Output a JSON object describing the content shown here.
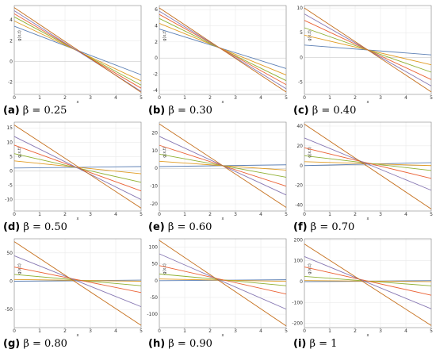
{
  "series_colors": [
    "#5e81b5",
    "#e19c24",
    "#8fb032",
    "#eb6235",
    "#8778b3",
    "#c56e1a"
  ],
  "chart_data": [
    {
      "type": "line",
      "label": "(a)",
      "beta_text": "β = 0.25",
      "xlabel": "x",
      "ylabel": "g(x,t)",
      "xlim": [
        0,
        5
      ],
      "ylim": [
        -3.2,
        5.4
      ],
      "xticks": [
        0,
        1,
        2,
        3,
        4,
        5
      ],
      "yticks": [
        -2,
        0,
        2,
        4
      ],
      "xtick_labels": [
        "0",
        "1",
        "2",
        "3",
        "4",
        "5"
      ],
      "ytick_labels": [
        "-2",
        "0",
        "2",
        "4"
      ],
      "x": [
        0,
        5
      ],
      "series": [
        {
          "values": [
            3.4,
            -1.3
          ]
        },
        {
          "values": [
            3.9,
            -1.9
          ]
        },
        {
          "values": [
            4.3,
            -2.3
          ]
        },
        {
          "values": [
            4.6,
            -2.6
          ]
        },
        {
          "values": [
            4.9,
            -2.9
          ]
        },
        {
          "values": [
            5.2,
            -3.0
          ]
        }
      ]
    },
    {
      "type": "line",
      "label": "(b)",
      "beta_text": "β = 0.30",
      "xlabel": "x",
      "ylabel": "g(x,t)",
      "xlim": [
        0,
        5
      ],
      "ylim": [
        -4.5,
        6.5
      ],
      "xticks": [
        0,
        1,
        2,
        3,
        4,
        5
      ],
      "yticks": [
        -4,
        -2,
        0,
        2,
        4,
        6
      ],
      "xtick_labels": [
        "0",
        "1",
        "2",
        "3",
        "4",
        "5"
      ],
      "ytick_labels": [
        "-4",
        "-2",
        "0",
        "2",
        "4",
        "6"
      ],
      "x": [
        0,
        5
      ],
      "series": [
        {
          "values": [
            3.6,
            -1.3
          ]
        },
        {
          "values": [
            4.3,
            -2.1
          ]
        },
        {
          "values": [
            4.9,
            -2.8
          ]
        },
        {
          "values": [
            5.4,
            -3.3
          ]
        },
        {
          "values": [
            5.8,
            -3.8
          ]
        },
        {
          "values": [
            6.2,
            -4.2
          ]
        }
      ]
    },
    {
      "type": "line",
      "label": "(c)",
      "beta_text": "β = 0.40",
      "xlabel": "x",
      "ylabel": "g(x,t)",
      "xlim": [
        0,
        5
      ],
      "ylim": [
        -7.5,
        10.5
      ],
      "xticks": [
        0,
        1,
        2,
        3,
        4,
        5
      ],
      "yticks": [
        -5,
        0,
        5,
        10
      ],
      "xtick_labels": [
        "0",
        "1",
        "2",
        "3",
        "4",
        "5"
      ],
      "ytick_labels": [
        "-5",
        "0",
        "5",
        "10"
      ],
      "x": [
        0,
        5
      ],
      "series": [
        {
          "values": [
            2.5,
            0.5
          ]
        },
        {
          "values": [
            4.5,
            -1.5
          ]
        },
        {
          "values": [
            6.0,
            -3.0
          ]
        },
        {
          "values": [
            7.5,
            -4.5
          ]
        },
        {
          "values": [
            8.8,
            -5.8
          ]
        },
        {
          "values": [
            10.0,
            -7.0
          ]
        }
      ]
    },
    {
      "type": "line",
      "label": "(d)",
      "beta_text": "β = 0.50",
      "xlabel": "x",
      "ylabel": "g(x,t)",
      "xlim": [
        0,
        5
      ],
      "ylim": [
        -14,
        17
      ],
      "xticks": [
        0,
        1,
        2,
        3,
        4,
        5
      ],
      "yticks": [
        -10,
        -5,
        0,
        5,
        10,
        15
      ],
      "xtick_labels": [
        "0",
        "1",
        "2",
        "3",
        "4",
        "5"
      ],
      "ytick_labels": [
        "-10",
        "-5",
        "0",
        "5",
        "10",
        "15"
      ],
      "x": [
        0,
        5
      ],
      "series": [
        {
          "values": [
            1.0,
            1.5
          ]
        },
        {
          "values": [
            3.5,
            -1.0
          ]
        },
        {
          "values": [
            6.0,
            -4.0
          ]
        },
        {
          "values": [
            9.0,
            -7.0
          ]
        },
        {
          "values": [
            12.0,
            -10.0
          ]
        },
        {
          "values": [
            16.0,
            -13.0
          ]
        }
      ]
    },
    {
      "type": "line",
      "label": "(e)",
      "beta_text": "β = 0.60",
      "xlabel": "x",
      "ylabel": "g(x,t)",
      "xlim": [
        0,
        5
      ],
      "ylim": [
        -24,
        26
      ],
      "xticks": [
        0,
        1,
        2,
        3,
        4,
        5
      ],
      "yticks": [
        -20,
        -10,
        0,
        10,
        20
      ],
      "xtick_labels": [
        "0",
        "1",
        "2",
        "3",
        "4",
        "5"
      ],
      "ytick_labels": [
        "-20",
        "-10",
        "0",
        "10",
        "20"
      ],
      "x": [
        0,
        5
      ],
      "series": [
        {
          "values": [
            1.0,
            2.0
          ]
        },
        {
          "values": [
            4.0,
            -1.0
          ]
        },
        {
          "values": [
            8.0,
            -5.0
          ]
        },
        {
          "values": [
            13.0,
            -10.0
          ]
        },
        {
          "values": [
            18.0,
            -15.0
          ]
        },
        {
          "values": [
            25.0,
            -22.0
          ]
        }
      ]
    },
    {
      "type": "line",
      "label": "(f)",
      "beta_text": "β = 0.70",
      "xlabel": "x",
      "ylabel": "g(x,t)",
      "xlim": [
        0,
        5
      ],
      "ylim": [
        -46,
        44
      ],
      "xticks": [
        0,
        1,
        2,
        3,
        4,
        5
      ],
      "yticks": [
        -40,
        -20,
        0,
        20,
        40
      ],
      "xtick_labels": [
        "0",
        "1",
        "2",
        "3",
        "4",
        "5"
      ],
      "ytick_labels": [
        "-40",
        "-20",
        "0",
        "20",
        "40"
      ],
      "x": [
        0,
        5
      ],
      "series": [
        {
          "values": [
            0.0,
            3.0
          ]
        },
        {
          "values": [
            4.0,
            0.0
          ]
        },
        {
          "values": [
            10.0,
            -5.0
          ]
        },
        {
          "values": [
            18.0,
            -13.0
          ]
        },
        {
          "values": [
            28.0,
            -25.0
          ]
        },
        {
          "values": [
            42.0,
            -44.0
          ]
        }
      ]
    },
    {
      "type": "line",
      "label": "(g)",
      "beta_text": "β = 0.80",
      "xlabel": "x",
      "ylabel": "g(x,t)",
      "xlim": [
        0,
        5
      ],
      "ylim": [
        -82,
        75
      ],
      "xticks": [
        0,
        1,
        2,
        3,
        4,
        5
      ],
      "yticks": [
        -50,
        0,
        50
      ],
      "xtick_labels": [
        "0",
        "1",
        "2",
        "3",
        "4",
        "5"
      ],
      "ytick_labels": [
        "-50",
        "0",
        "50"
      ],
      "x": [
        0,
        5
      ],
      "series": [
        {
          "values": [
            0.0,
            2.0
          ]
        },
        {
          "values": [
            3.0,
            0.0
          ]
        },
        {
          "values": [
            12.0,
            -8.0
          ]
        },
        {
          "values": [
            25.0,
            -20.0
          ]
        },
        {
          "values": [
            45.0,
            -45.0
          ]
        },
        {
          "values": [
            70.0,
            -78.0
          ]
        }
      ]
    },
    {
      "type": "line",
      "label": "(h)",
      "beta_text": "β = 0.90",
      "xlabel": "x",
      "ylabel": "g(x,t)",
      "xlim": [
        0,
        5
      ],
      "ylim": [
        -140,
        125
      ],
      "xticks": [
        0,
        1,
        2,
        3,
        4,
        5
      ],
      "yticks": [
        -100,
        -50,
        0,
        50,
        100
      ],
      "xtick_labels": [
        "0",
        "1",
        "2",
        "3",
        "4",
        "5"
      ],
      "ytick_labels": [
        "-100",
        "-50",
        "0",
        "50",
        "100"
      ],
      "x": [
        0,
        5
      ],
      "series": [
        {
          "values": [
            0.0,
            3.0
          ]
        },
        {
          "values": [
            5.0,
            -2.0
          ]
        },
        {
          "values": [
            20.0,
            -15.0
          ]
        },
        {
          "values": [
            45.0,
            -40.0
          ]
        },
        {
          "values": [
            80.0,
            -85.0
          ]
        },
        {
          "values": [
            120.0,
            -135.0
          ]
        }
      ]
    },
    {
      "type": "line",
      "label": "(i)",
      "beta_text": "β = 1",
      "xlabel": "x",
      "ylabel": "g(x,t)",
      "xlim": [
        0,
        5
      ],
      "ylim": [
        -220,
        205
      ],
      "xticks": [
        0,
        1,
        2,
        3,
        4,
        5
      ],
      "yticks": [
        -200,
        -100,
        0,
        100,
        200
      ],
      "xtick_labels": [
        "0",
        "1",
        "2",
        "3",
        "4",
        "5"
      ],
      "ytick_labels": [
        "-200",
        "-100",
        "0",
        "100",
        "200"
      ],
      "x": [
        0,
        5
      ],
      "series": [
        {
          "values": [
            0.0,
            5.0
          ]
        },
        {
          "values": [
            5.0,
            0.0
          ]
        },
        {
          "values": [
            25.0,
            -20.0
          ]
        },
        {
          "values": [
            70.0,
            -65.0
          ]
        },
        {
          "values": [
            120.0,
            -130.0
          ]
        },
        {
          "values": [
            180.0,
            -210.0
          ]
        }
      ]
    }
  ]
}
